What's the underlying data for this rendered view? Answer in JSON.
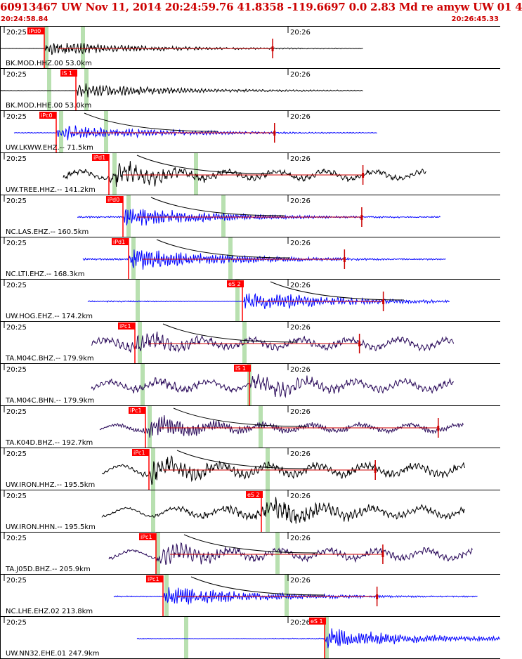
{
  "header": {
    "title": "60913467 UW Nov 11, 2014 20:24:59.76   41.8358 -119.6697  0.0 2.83 Md re amyw UW 01   4",
    "time_start": "20:24:58.84",
    "time_end": "20:26:45.33"
  },
  "colors": {
    "header_text": "#cc0000",
    "pick_box": "#ff0000",
    "pick_text": "#ffffff",
    "pick_window": "#b8e0b0",
    "trace_black": "#000000",
    "trace_blue": "#0000ff",
    "trace_purple": "#2a0a5a",
    "coda_line": "#cc0000",
    "curve": "#000000"
  },
  "chart_data": {
    "type": "seismogram_record_section",
    "x_axis": {
      "start": "20:24:58.84",
      "end": "20:26:45.33",
      "tick_labels": [
        "20:25",
        "20:26"
      ]
    },
    "panels": [
      {
        "label": "BK.MOD.HHZ.00 53.0km",
        "pick": "iPd0",
        "color": "black",
        "pick_mode": "left",
        "amp": 10,
        "noise": 0.02,
        "burst": 1.0,
        "freq": 1.3,
        "has_coda": true,
        "has_curve": false,
        "coda_mark": 0.36
      },
      {
        "label": "BK.MOD.HHE.00 53.0km",
        "pick": "iS 1",
        "color": "black",
        "pick_mode": "right",
        "amp": 10,
        "noise": 0.02,
        "burst": 1.0,
        "freq": 1.3,
        "has_coda": false,
        "has_curve": false,
        "coda_mark": null
      },
      {
        "label": "UW.LKWW.EHZ.-- 71.5km",
        "pick": "iPc0",
        "color": "blue",
        "pick_mode": "left",
        "amp": 12,
        "noise": 0.04,
        "burst": 1.0,
        "freq": 1.4,
        "has_coda": true,
        "has_curve": true,
        "coda_mark": 0.3
      },
      {
        "label": "UW.TREE.HHZ.-- 141.2km",
        "pick": "iPd1",
        "color": "black",
        "pick_mode": "left",
        "amp": 16,
        "noise": 0.35,
        "burst": 0.9,
        "freq": 0.8,
        "has_coda": true,
        "has_curve": true,
        "coda_mark": 0.5
      },
      {
        "label": "NC.LAS.EHZ.-- 160.5km",
        "pick": "iPd0",
        "color": "blue",
        "pick_mode": "left",
        "amp": 14,
        "noise": 0.1,
        "burst": 1.0,
        "freq": 1.8,
        "has_coda": true,
        "has_curve": true,
        "coda_mark": 0.42
      },
      {
        "label": "NC.LTI.EHZ.-- 168.3km",
        "pick": "iPd1",
        "color": "blue",
        "pick_mode": "left",
        "amp": 16,
        "noise": 0.08,
        "burst": 1.0,
        "freq": 1.8,
        "has_coda": true,
        "has_curve": true,
        "coda_mark": 0.3
      },
      {
        "label": "UW.HOG.EHZ.-- 174.2km",
        "pick": "eS 2",
        "color": "blue",
        "pick_mode": "right",
        "amp": 14,
        "noise": 0.06,
        "burst": 1.0,
        "freq": 1.6,
        "has_coda": true,
        "has_curve": true,
        "coda_mark": 0.3
      },
      {
        "label": "TA.M04C.BHZ.-- 179.9km",
        "pick": "iPc1",
        "color": "purple",
        "pick_mode": "left",
        "amp": 14,
        "noise": 0.45,
        "burst": 0.9,
        "freq": 0.9,
        "has_coda": true,
        "has_curve": true,
        "coda_mark": 0.34
      },
      {
        "label": "TA.M04C.BHN.-- 179.9km",
        "pick": "iS 1",
        "color": "purple",
        "pick_mode": "right",
        "amp": 14,
        "noise": 0.45,
        "burst": 1.0,
        "freq": 0.9,
        "has_coda": false,
        "has_curve": false,
        "coda_mark": null
      },
      {
        "label": "TA.K04D.BHZ.-- 192.7km",
        "pick": "iPc1",
        "color": "purple",
        "pick_mode": "left",
        "amp": 14,
        "noise": 0.35,
        "burst": 1.0,
        "freq": 1.7,
        "has_coda": true,
        "has_curve": true,
        "coda_mark": 0.7
      },
      {
        "label": "UW.IRON.HHZ.-- 195.5km",
        "pick": "iPc1",
        "color": "black",
        "pick_mode": "left",
        "amp": 16,
        "noise": 0.45,
        "burst": 0.9,
        "freq": 1.0,
        "has_coda": true,
        "has_curve": true,
        "coda_mark": 0.36
      },
      {
        "label": "UW.IRON.HHN.-- 195.5km",
        "pick": "eS 2",
        "color": "black",
        "pick_mode": "right",
        "amp": 16,
        "noise": 0.4,
        "burst": 1.0,
        "freq": 1.0,
        "has_coda": false,
        "has_curve": false,
        "coda_mark": null
      },
      {
        "label": "TA.J05D.BHZ.-- 205.9km",
        "pick": "iPc1",
        "color": "purple",
        "pick_mode": "left",
        "amp": 14,
        "noise": 0.45,
        "burst": 0.9,
        "freq": 1.0,
        "has_coda": true,
        "has_curve": true,
        "coda_mark": 0.36
      },
      {
        "label": "NC.LHE.EHZ.02 213.8km",
        "pick": "iPc1",
        "color": "blue",
        "pick_mode": "left",
        "amp": 14,
        "noise": 0.08,
        "burst": 1.0,
        "freq": 1.9,
        "has_coda": true,
        "has_curve": true,
        "coda_mark": 0.3
      },
      {
        "label": "UW.NN32.EHE.01 247.9km",
        "pick": "eS 1",
        "color": "blue",
        "pick_mode": "right",
        "amp": 14,
        "noise": 0.05,
        "burst": 1.0,
        "freq": 1.8,
        "has_coda": false,
        "has_curve": false,
        "coda_mark": null
      }
    ]
  }
}
